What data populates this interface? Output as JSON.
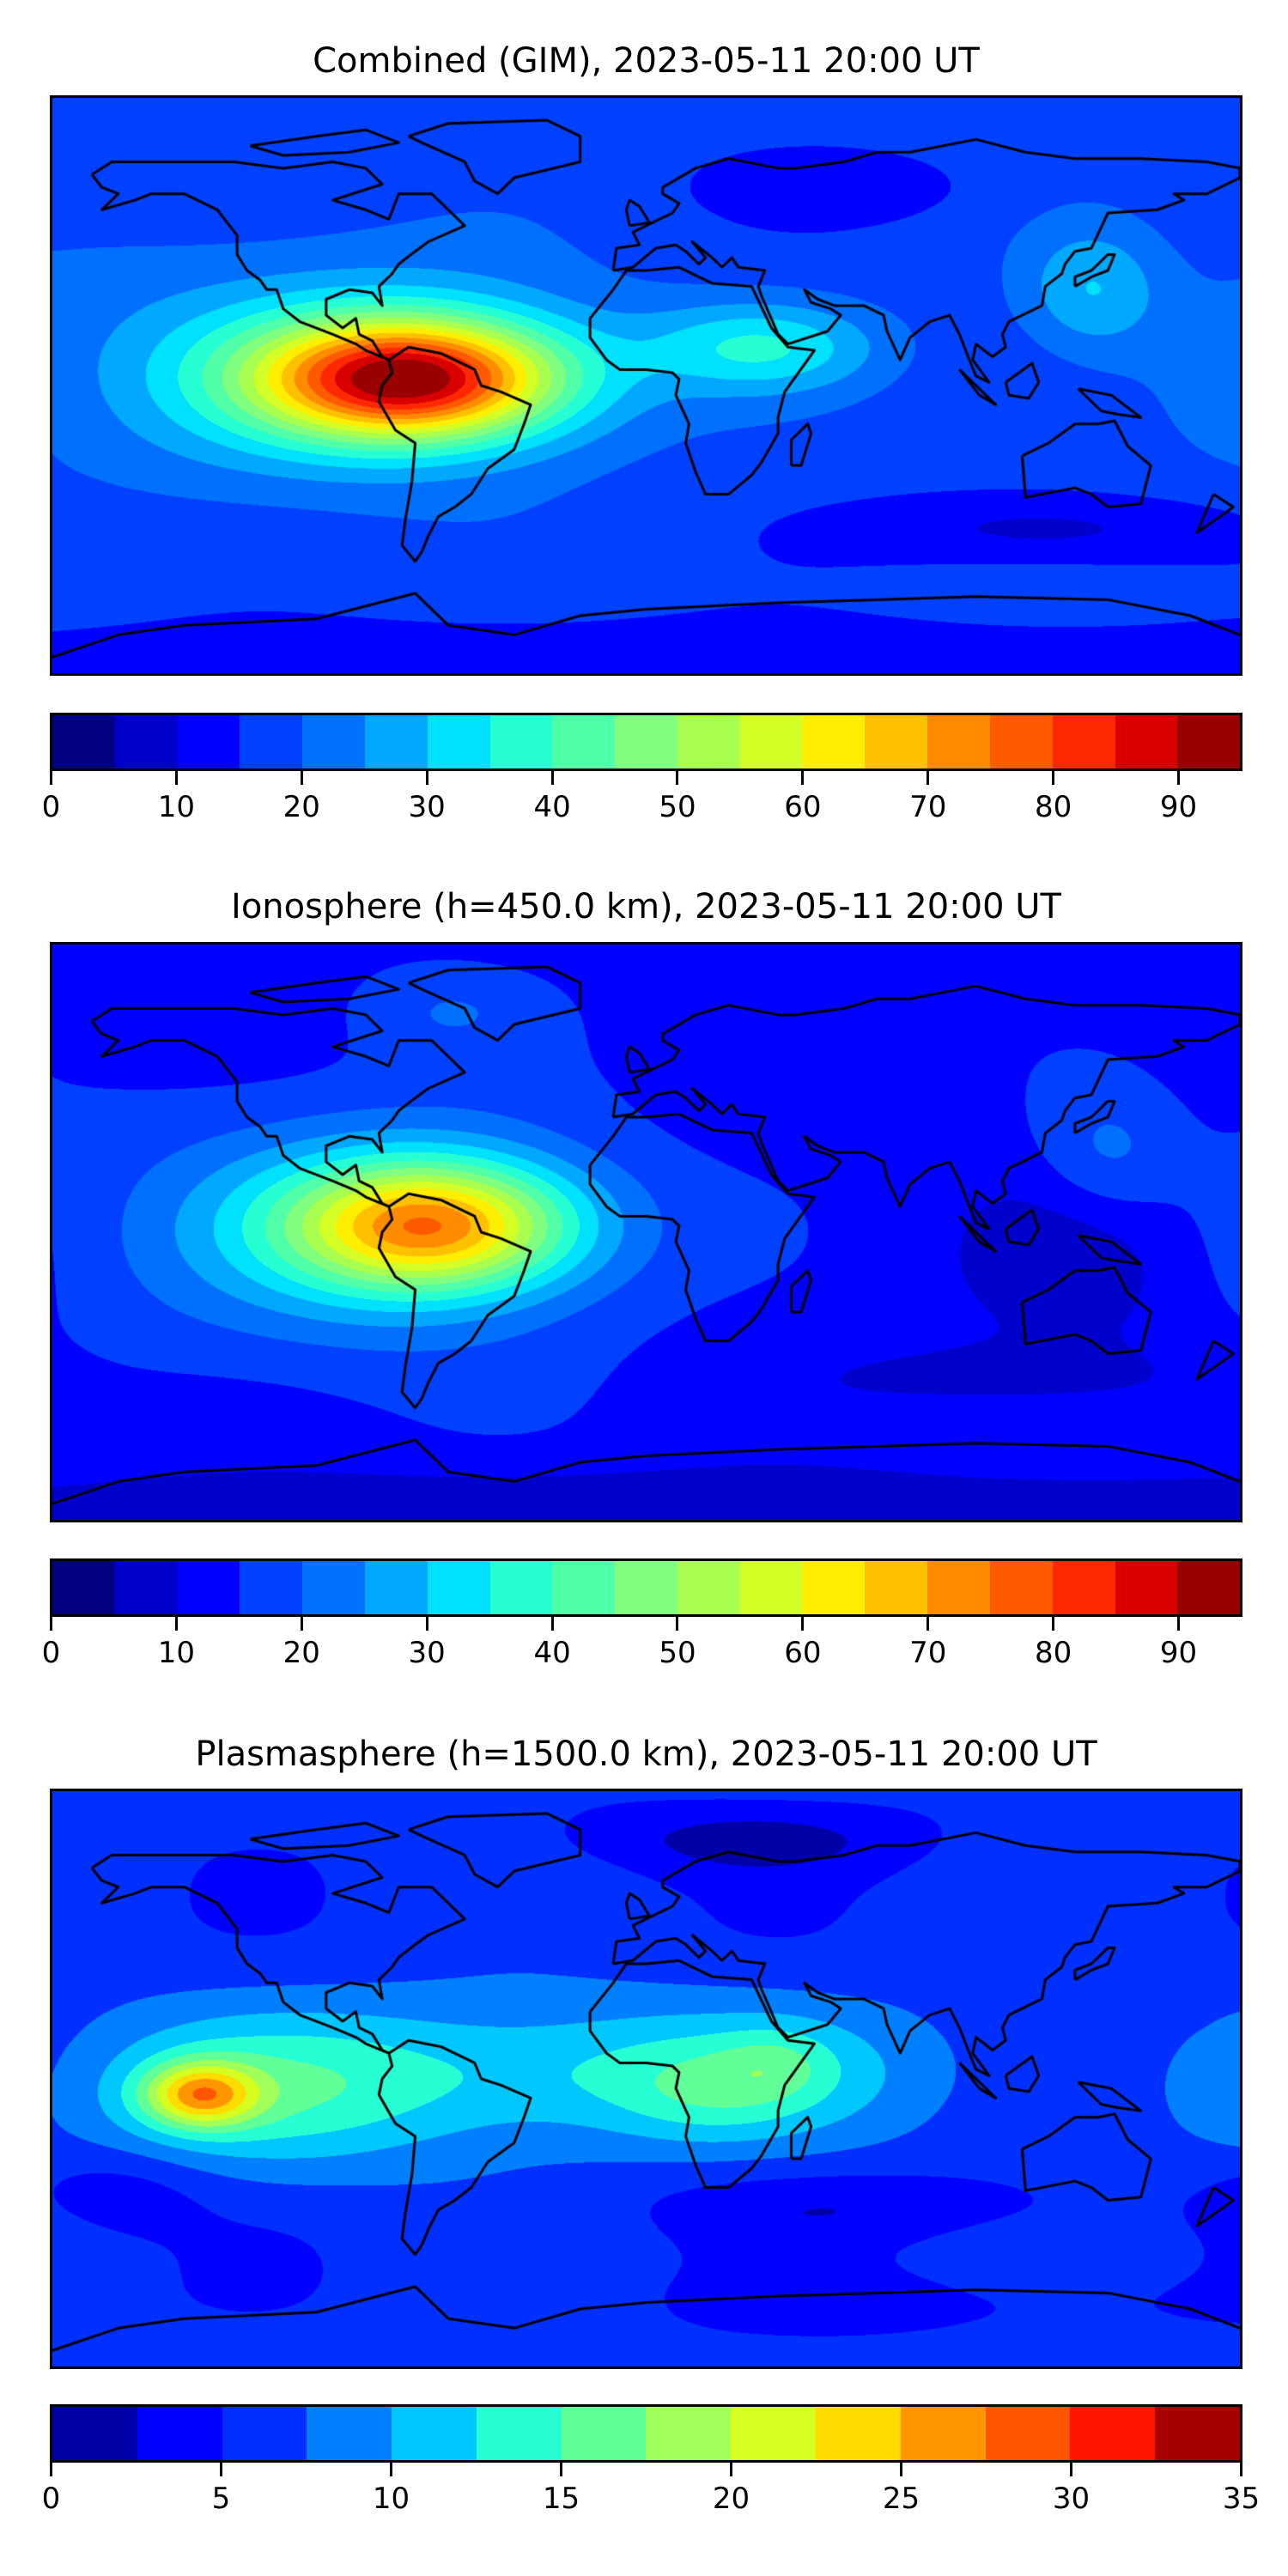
{
  "chart_data": [
    {
      "type": "heatmap",
      "subtype": "filled-contour world map",
      "title": "Combined (GIM), 2023-05-11 20:00 UT",
      "xlim": [
        -180,
        180
      ],
      "ylim": [
        -90,
        90
      ],
      "colorbar": {
        "min": 0,
        "max": 95,
        "step": 5,
        "ticks": [
          0,
          10,
          20,
          30,
          40,
          50,
          60,
          70,
          80,
          90
        ],
        "tick_labels": [
          "0",
          "10",
          "20",
          "30",
          "40",
          "50",
          "60",
          "70",
          "80",
          "90"
        ],
        "colors": [
          "#000080",
          "#0000cd",
          "#0000ff",
          "#0040ff",
          "#0070ff",
          "#00a8ff",
          "#00e0ff",
          "#26ffd4",
          "#50ffa8",
          "#80ff80",
          "#a8ff50",
          "#d4ff26",
          "#ffee00",
          "#ffc000",
          "#ff8c00",
          "#ff5a00",
          "#ff2800",
          "#d90000",
          "#990000"
        ]
      },
      "field": {
        "base": 17,
        "features": [
          {
            "lon": -72,
            "lat": 2,
            "amp": 68,
            "slon": 32,
            "slat": 13
          },
          {
            "lon": -100,
            "lat": 5,
            "amp": 14,
            "slon": 60,
            "slat": 26
          },
          {
            "lon": 35,
            "lat": 12,
            "amp": 17,
            "slon": 25,
            "slat": 10
          },
          {
            "lon": 135,
            "lat": 30,
            "amp": 12,
            "slon": 15,
            "slat": 14
          },
          {
            "lon": 120,
            "lat": -45,
            "amp": -9,
            "slon": 40,
            "slat": 8
          },
          {
            "lon": 60,
            "lat": 62,
            "amp": -5,
            "slon": 30,
            "slat": 8
          },
          {
            "lon": 0,
            "lat": -85,
            "amp": -7,
            "slon": 180,
            "slat": 8
          }
        ]
      }
    },
    {
      "type": "heatmap",
      "subtype": "filled-contour world map",
      "title": "Ionosphere  (h=450.0 km), 2023-05-11 20:00 UT",
      "xlim": [
        -180,
        180
      ],
      "ylim": [
        -90,
        90
      ],
      "colorbar": {
        "min": 0,
        "max": 95,
        "step": 5,
        "ticks": [
          0,
          10,
          20,
          30,
          40,
          50,
          60,
          70,
          80,
          90
        ],
        "tick_labels": [
          "0",
          "10",
          "20",
          "30",
          "40",
          "50",
          "60",
          "70",
          "80",
          "90"
        ],
        "colors": [
          "#000080",
          "#0000cd",
          "#0000ff",
          "#0040ff",
          "#0070ff",
          "#00a8ff",
          "#00e0ff",
          "#26ffd4",
          "#50ffa8",
          "#80ff80",
          "#a8ff50",
          "#d4ff26",
          "#ffee00",
          "#ffc000",
          "#ff8c00",
          "#ff5a00",
          "#ff2800",
          "#d90000",
          "#990000"
        ]
      },
      "field": {
        "base": 13,
        "features": [
          {
            "lon": -65,
            "lat": 2,
            "amp": 50,
            "slon": 30,
            "slat": 14
          },
          {
            "lon": -90,
            "lat": 0,
            "amp": 15,
            "slon": 55,
            "slat": 28
          },
          {
            "lon": 130,
            "lat": -10,
            "amp": -6,
            "slon": 25,
            "slat": 20
          },
          {
            "lon": 140,
            "lat": 25,
            "amp": 8,
            "slon": 15,
            "slat": 15
          },
          {
            "lon": 0,
            "lat": -85,
            "amp": -7,
            "slon": 180,
            "slat": 8
          },
          {
            "lon": 110,
            "lat": -45,
            "amp": -5,
            "slon": 40,
            "slat": 8
          },
          {
            "lon": -60,
            "lat": 70,
            "amp": 6,
            "slon": 20,
            "slat": 10
          }
        ]
      }
    },
    {
      "type": "heatmap",
      "subtype": "filled-contour world map",
      "title": "Plasmasphere (h=1500.0 km), 2023-05-11 20:00 UT",
      "xlim": [
        -180,
        180
      ],
      "ylim": [
        -90,
        90
      ],
      "colorbar": {
        "min": 0,
        "max": 35,
        "step": 2.5,
        "ticks": [
          0,
          5,
          10,
          15,
          20,
          25,
          30,
          35
        ],
        "tick_labels": [
          "0",
          "5",
          "10",
          "15",
          "20",
          "25",
          "30",
          "35"
        ],
        "colors": [
          "#0000a8",
          "#0000ff",
          "#0030ff",
          "#0080ff",
          "#00c8ff",
          "#26ffd4",
          "#60ff98",
          "#a0ff58",
          "#d4ff20",
          "#ffdc00",
          "#ff9600",
          "#ff5500",
          "#ff1400",
          "#a80000"
        ]
      },
      "field": {
        "base": 6,
        "features": [
          {
            "lon": -135,
            "lat": -5,
            "amp": 14,
            "slon": 12,
            "slat": 7
          },
          {
            "lon": -120,
            "lat": -5,
            "amp": 6,
            "slon": 45,
            "slat": 18
          },
          {
            "lon": -10,
            "lat": 2,
            "amp": 7,
            "slon": 70,
            "slat": 16
          },
          {
            "lon": 20,
            "lat": -5,
            "amp": 3,
            "slon": 20,
            "slat": 10
          },
          {
            "lon": 40,
            "lat": 5,
            "amp": 3,
            "slon": 12,
            "slat": 8
          },
          {
            "lon": 30,
            "lat": 75,
            "amp": -4,
            "slon": 40,
            "slat": 8
          },
          {
            "lon": -160,
            "lat": -35,
            "amp": -3,
            "slon": 20,
            "slat": 10
          },
          {
            "lon": 70,
            "lat": -40,
            "amp": -3,
            "slon": 50,
            "slat": 8
          },
          {
            "lon": 90,
            "lat": -70,
            "amp": -2,
            "slon": 60,
            "slat": 8
          }
        ]
      }
    }
  ]
}
